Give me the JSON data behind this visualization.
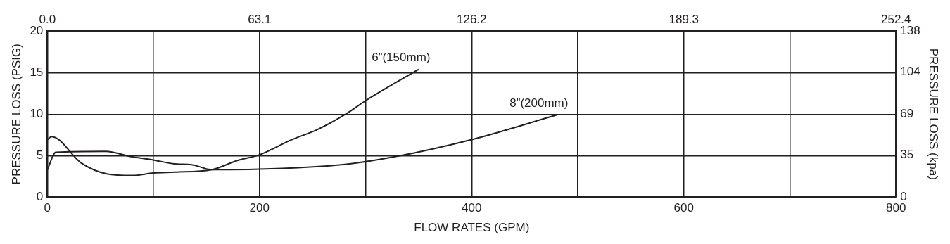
{
  "chart_data": {
    "type": "line",
    "xlabel": "FLOW RATES (GPM)",
    "ylabel": "PRESSURE LOSS (PSIG)",
    "y2label": "PRESSURE LOSS (kpa)",
    "xlim": [
      0,
      800
    ],
    "xticks": [
      0,
      {
        "value": 100,
        "label": null
      },
      200,
      {
        "value": 300,
        "label": null
      },
      400,
      {
        "value": 500,
        "label": null
      },
      600,
      {
        "value": 700,
        "label": null
      },
      800
    ],
    "ylim": [
      0,
      20
    ],
    "yticks": [
      0,
      5,
      10,
      15,
      20
    ],
    "y2lim": [
      0,
      138
    ],
    "y2ticks": [
      0,
      35,
      69,
      104,
      138
    ],
    "x2lim": [
      0,
      252.4
    ],
    "x2ticks": [
      {
        "value": 0,
        "label": "0.0"
      },
      63.1,
      126.2,
      189.3,
      252.4
    ],
    "grid": true,
    "legend": false,
    "marker": "none",
    "line_style": "solid",
    "series": [
      {
        "name": "6”(150mm)",
        "color": "#231f20",
        "x": [
          0,
          4,
          32,
          56,
          80,
          100,
          120,
          155,
          179,
          200,
          230,
          254,
          280,
          301,
          350
        ],
        "values": [
          6.9,
          7.3,
          4.1,
          2.8,
          2.6,
          2.9,
          3.0,
          3.3,
          4.4,
          5.1,
          6.9,
          8.1,
          9.9,
          11.7,
          15.4
        ]
      },
      {
        "name": "8”(200mm)",
        "color": "#231f20",
        "x": [
          0,
          8,
          55,
          78,
          99,
          120,
          136,
          155,
          277,
          325,
          402,
          480
        ],
        "values": [
          3.3,
          5.4,
          5.5,
          4.9,
          4.5,
          4.0,
          3.9,
          3.3,
          3.9,
          4.8,
          7.0,
          9.9
        ]
      }
    ]
  }
}
